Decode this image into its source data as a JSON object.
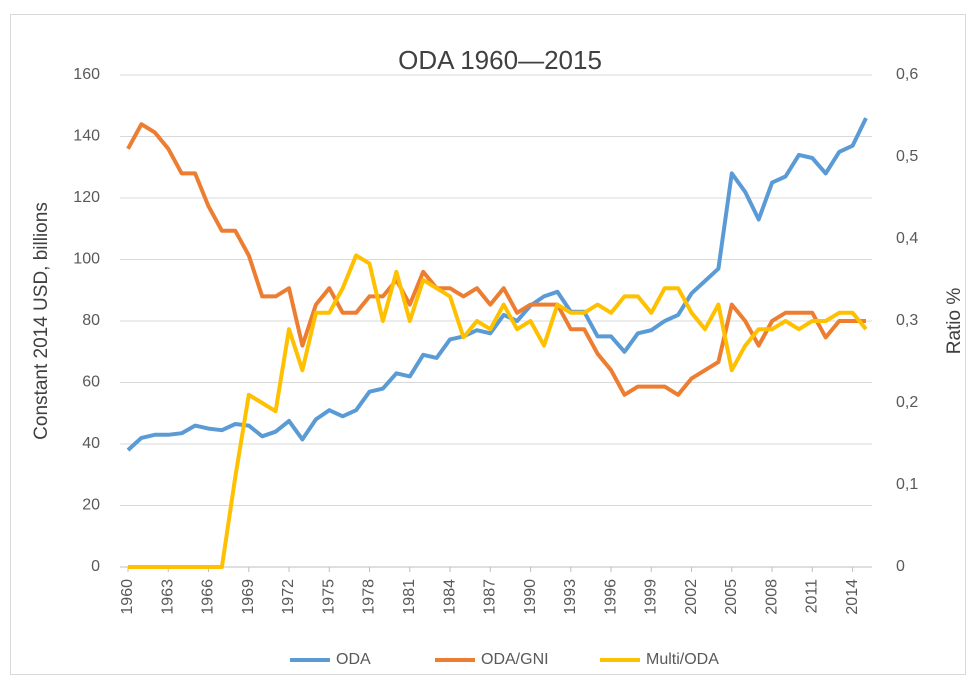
{
  "chart_data": {
    "type": "line",
    "title": "ODA 1960—2015",
    "ylabel": "Constant 2014 USD, billions",
    "y2label": "Ratio %",
    "x": [
      1960,
      1961,
      1962,
      1963,
      1964,
      1965,
      1966,
      1967,
      1968,
      1969,
      1970,
      1971,
      1972,
      1973,
      1974,
      1975,
      1976,
      1977,
      1978,
      1979,
      1980,
      1981,
      1982,
      1983,
      1984,
      1985,
      1986,
      1987,
      1988,
      1989,
      1990,
      1991,
      1992,
      1993,
      1994,
      1995,
      1996,
      1997,
      1998,
      1999,
      2000,
      2001,
      2002,
      2003,
      2004,
      2005,
      2006,
      2007,
      2008,
      2009,
      2010,
      2011,
      2012,
      2013,
      2014,
      2015
    ],
    "xlim": [
      1960,
      2015
    ],
    "xticks": [
      1960,
      1963,
      1966,
      1969,
      1972,
      1975,
      1978,
      1981,
      1984,
      1987,
      1990,
      1993,
      1996,
      1999,
      2002,
      2005,
      2008,
      2011,
      2014
    ],
    "ylim": [
      0,
      160
    ],
    "yticks": [
      0,
      20,
      40,
      60,
      80,
      100,
      120,
      140,
      160
    ],
    "y2lim": [
      0,
      0.6
    ],
    "y2ticks": [
      0,
      {
        "value": 0.1,
        "label": "0,1"
      },
      {
        "value": 0.2,
        "label": "0,2"
      },
      {
        "value": 0.3,
        "label": "0,3"
      },
      {
        "value": 0.4,
        "label": "0,4"
      },
      {
        "value": 0.5,
        "label": "0,5"
      },
      {
        "value": 0.6,
        "label": "0,6"
      }
    ],
    "grid": true,
    "legend": "bottom",
    "series": [
      {
        "name": "ODA",
        "color": "#5b9bd5",
        "values": [
          38,
          42,
          43,
          43,
          43.5,
          46,
          45,
          44.5,
          46.5,
          46,
          42.5,
          44,
          47.5,
          41.5,
          48,
          51,
          49,
          51,
          57,
          58,
          63,
          62,
          69,
          68,
          74,
          75,
          77,
          76,
          82,
          80,
          85,
          88,
          89.5,
          83,
          83,
          75,
          75,
          70,
          76,
          77,
          80,
          82,
          89,
          93,
          97,
          128,
          122,
          113,
          125,
          127,
          134,
          133,
          128,
          135,
          137,
          146
        ]
      },
      {
        "name": "ODA/GNI",
        "color": "#ed7d31",
        "axis": "y2",
        "values": [
          0.51,
          0.54,
          0.53,
          0.51,
          0.48,
          0.48,
          0.44,
          0.41,
          0.41,
          0.38,
          0.33,
          0.33,
          0.34,
          0.27,
          0.32,
          0.34,
          0.31,
          0.31,
          0.33,
          0.33,
          0.35,
          0.32,
          0.36,
          0.34,
          0.34,
          0.33,
          0.34,
          0.32,
          0.34,
          0.31,
          0.32,
          0.32,
          0.32,
          0.29,
          0.29,
          0.26,
          0.24,
          0.21,
          0.22,
          0.22,
          0.22,
          0.21,
          0.23,
          0.24,
          0.25,
          0.32,
          0.3,
          0.27,
          0.3,
          0.31,
          0.31,
          0.31,
          0.28,
          0.3,
          0.3,
          0.3
        ]
      },
      {
        "name": "Multi/ODA",
        "color": "#ffc000",
        "axis": "y2",
        "values": [
          0,
          0,
          0,
          0,
          0,
          0,
          0,
          0,
          0.11,
          0.21,
          0.2,
          0.19,
          0.29,
          0.24,
          0.31,
          0.31,
          0.34,
          0.38,
          0.37,
          0.3,
          0.36,
          0.3,
          0.35,
          0.34,
          0.33,
          0.28,
          0.3,
          0.29,
          0.32,
          0.29,
          0.3,
          0.27,
          0.32,
          0.31,
          0.31,
          0.32,
          0.31,
          0.33,
          0.33,
          0.31,
          0.34,
          0.34,
          0.31,
          0.29,
          0.32,
          0.24,
          0.27,
          0.29,
          0.29,
          0.3,
          0.29,
          0.3,
          0.3,
          0.31,
          0.31,
          0.29
        ]
      }
    ]
  }
}
